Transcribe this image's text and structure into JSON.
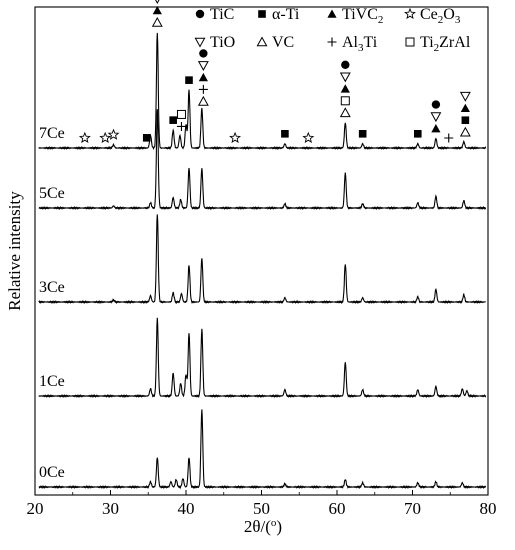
{
  "chart_data": {
    "type": "line",
    "title": "",
    "xlabel": "2θ/(o)",
    "ylabel": "Relative intensity",
    "xlim": [
      20,
      80
    ],
    "xticks": [
      20,
      30,
      40,
      50,
      60,
      70,
      80
    ],
    "grid": false,
    "legend_placement": "top",
    "y_ticks_shown": false,
    "series": [
      {
        "name": "0Ce",
        "baseline": 0,
        "peaks": [
          {
            "x": 35.3,
            "h": 0.05
          },
          {
            "x": 36.2,
            "h": 0.28
          },
          {
            "x": 38.0,
            "h": 0.05
          },
          {
            "x": 38.7,
            "h": 0.07
          },
          {
            "x": 39.6,
            "h": 0.08
          },
          {
            "x": 40.4,
            "h": 0.28
          },
          {
            "x": 42.1,
            "h": 0.74
          },
          {
            "x": 53.1,
            "h": 0.03
          },
          {
            "x": 61.1,
            "h": 0.07
          },
          {
            "x": 63.4,
            "h": 0.04
          },
          {
            "x": 70.7,
            "h": 0.04
          },
          {
            "x": 73.1,
            "h": 0.05
          },
          {
            "x": 76.6,
            "h": 0.04
          }
        ]
      },
      {
        "name": "1Ce",
        "baseline": 1,
        "peaks": [
          {
            "x": 35.3,
            "h": 0.07
          },
          {
            "x": 36.2,
            "h": 0.74
          },
          {
            "x": 38.3,
            "h": 0.22
          },
          {
            "x": 39.3,
            "h": 0.12
          },
          {
            "x": 40.0,
            "h": 0.2
          },
          {
            "x": 40.4,
            "h": 0.6
          },
          {
            "x": 42.1,
            "h": 0.64
          },
          {
            "x": 53.1,
            "h": 0.06
          },
          {
            "x": 61.1,
            "h": 0.32
          },
          {
            "x": 63.4,
            "h": 0.06
          },
          {
            "x": 70.7,
            "h": 0.06
          },
          {
            "x": 73.1,
            "h": 0.09
          },
          {
            "x": 76.6,
            "h": 0.07
          },
          {
            "x": 77.2,
            "h": 0.05
          }
        ]
      },
      {
        "name": "3Ce",
        "baseline": 2,
        "peaks": [
          {
            "x": 30.4,
            "h": 0.02
          },
          {
            "x": 35.3,
            "h": 0.06
          },
          {
            "x": 36.2,
            "h": 0.84
          },
          {
            "x": 38.3,
            "h": 0.09
          },
          {
            "x": 39.4,
            "h": 0.08
          },
          {
            "x": 40.4,
            "h": 0.35
          },
          {
            "x": 42.1,
            "h": 0.42
          },
          {
            "x": 53.1,
            "h": 0.04
          },
          {
            "x": 61.1,
            "h": 0.36
          },
          {
            "x": 63.4,
            "h": 0.04
          },
          {
            "x": 70.7,
            "h": 0.05
          },
          {
            "x": 73.1,
            "h": 0.12
          },
          {
            "x": 76.8,
            "h": 0.07
          }
        ]
      },
      {
        "name": "5Ce",
        "baseline": 3,
        "peaks": [
          {
            "x": 30.4,
            "h": 0.02
          },
          {
            "x": 35.3,
            "h": 0.05
          },
          {
            "x": 36.2,
            "h": 0.94
          },
          {
            "x": 38.3,
            "h": 0.1
          },
          {
            "x": 39.3,
            "h": 0.08
          },
          {
            "x": 40.4,
            "h": 0.38
          },
          {
            "x": 42.1,
            "h": 0.38
          },
          {
            "x": 53.1,
            "h": 0.04
          },
          {
            "x": 61.1,
            "h": 0.33
          },
          {
            "x": 63.4,
            "h": 0.04
          },
          {
            "x": 70.7,
            "h": 0.05
          },
          {
            "x": 73.1,
            "h": 0.11
          },
          {
            "x": 76.8,
            "h": 0.07
          }
        ]
      },
      {
        "name": "7Ce",
        "baseline": 4,
        "peaks": [
          {
            "x": 30.4,
            "h": 0.03
          },
          {
            "x": 35.3,
            "h": 0.12
          },
          {
            "x": 36.2,
            "h": 1.1
          },
          {
            "x": 38.3,
            "h": 0.17
          },
          {
            "x": 39.2,
            "h": 0.12
          },
          {
            "x": 40.0,
            "h": 0.22
          },
          {
            "x": 40.4,
            "h": 0.55
          },
          {
            "x": 42.1,
            "h": 0.38
          },
          {
            "x": 53.1,
            "h": 0.04
          },
          {
            "x": 61.1,
            "h": 0.24
          },
          {
            "x": 63.4,
            "h": 0.04
          },
          {
            "x": 70.7,
            "h": 0.04
          },
          {
            "x": 73.1,
            "h": 0.09
          },
          {
            "x": 76.8,
            "h": 0.06
          }
        ]
      }
    ],
    "legend": [
      {
        "symbol": "filled-circle",
        "label_parts": [
          {
            "t": "TiC"
          }
        ]
      },
      {
        "symbol": "filled-square",
        "label_parts": [
          {
            "t": "α-Ti"
          }
        ]
      },
      {
        "symbol": "filled-triangle",
        "label_parts": [
          {
            "t": "TiVC"
          },
          {
            "t": "2",
            "sub": true
          }
        ]
      },
      {
        "symbol": "open-star",
        "label_parts": [
          {
            "t": "Ce"
          },
          {
            "t": "2",
            "sub": true
          },
          {
            "t": "O"
          },
          {
            "t": "3",
            "sub": true
          }
        ]
      },
      {
        "symbol": "open-down-triangle",
        "label_parts": [
          {
            "t": "TiO"
          }
        ]
      },
      {
        "symbol": "open-triangle",
        "label_parts": [
          {
            "t": "VC"
          }
        ]
      },
      {
        "symbol": "plus",
        "label_parts": [
          {
            "t": "Al"
          },
          {
            "t": "3",
            "sub": true
          },
          {
            "t": "Ti"
          }
        ]
      },
      {
        "symbol": "open-square",
        "label_parts": [
          {
            "t": "Ti"
          },
          {
            "t": "2",
            "sub": true
          },
          {
            "t": "ZrAl"
          }
        ]
      }
    ],
    "peak_markers": [
      {
        "x": 36.2,
        "symbols": [
          "filled-circle",
          "open-down-triangle",
          "filled-triangle",
          "open-triangle"
        ]
      },
      {
        "x": 38.3,
        "symbols": [
          "filled-square"
        ]
      },
      {
        "x": 39.4,
        "symbols": [
          "open-square",
          "plus"
        ]
      },
      {
        "x": 40.4,
        "symbols": [
          "filled-square"
        ]
      },
      {
        "x": 42.3,
        "symbols": [
          "filled-circle",
          "open-down-triangle",
          "filled-triangle",
          "plus",
          "open-triangle"
        ]
      },
      {
        "x": 61.1,
        "symbols": [
          "filled-circle",
          "open-down-triangle",
          "filled-triangle",
          "open-square",
          "open-triangle"
        ]
      },
      {
        "x": 73.1,
        "symbols": [
          "filled-circle",
          "open-down-triangle",
          "filled-triangle"
        ]
      },
      {
        "x": 77.0,
        "symbols": [
          "open-down-triangle",
          "filled-triangle",
          "filled-square",
          "open-triangle"
        ]
      },
      {
        "x": 34.8,
        "symbols": [
          "filled-square"
        ]
      },
      {
        "x": 53.1,
        "symbols": [
          "filled-square"
        ]
      },
      {
        "x": 63.4,
        "symbols": [
          "filled-square"
        ]
      },
      {
        "x": 70.7,
        "symbols": [
          "filled-square"
        ]
      },
      {
        "x": 74.8,
        "symbols": [
          "plus"
        ]
      },
      {
        "x": 26.6,
        "symbols": [
          "open-star"
        ]
      },
      {
        "x": 29.3,
        "symbols": [
          "open-star"
        ]
      },
      {
        "x": 30.4,
        "symbols": [
          "open-star"
        ]
      },
      {
        "x": 46.5,
        "symbols": [
          "open-star"
        ]
      },
      {
        "x": 56.2,
        "symbols": [
          "open-star"
        ]
      }
    ],
    "colors": {
      "line": "#000000",
      "background": "#ffffff"
    }
  }
}
